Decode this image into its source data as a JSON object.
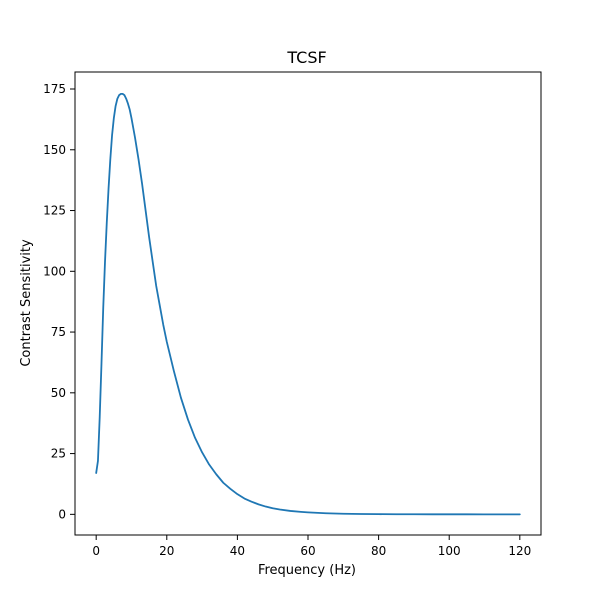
{
  "chart_data": {
    "type": "line",
    "title": "TCSF",
    "xlabel": "Frequency (Hz)",
    "ylabel": "Contrast Sensitivity",
    "xlim": [
      -6,
      126
    ],
    "ylim": [
      -8.5,
      182
    ],
    "x_ticks": [
      0,
      20,
      40,
      60,
      80,
      100,
      120
    ],
    "y_ticks": [
      0,
      25,
      50,
      75,
      100,
      125,
      150,
      175
    ],
    "x_tick_labels": [
      "0",
      "20",
      "40",
      "60",
      "80",
      "100",
      "120"
    ],
    "y_tick_labels": [
      "0",
      "25",
      "50",
      "75",
      "100",
      "125",
      "150",
      "175"
    ],
    "grid": false,
    "legend": "none",
    "series": [
      {
        "color": "#1f77b4",
        "x": [
          0,
          0.5,
          1,
          1.5,
          2,
          2.5,
          3,
          3.5,
          4,
          4.5,
          5,
          5.5,
          6,
          6.5,
          7,
          7.5,
          8,
          8.5,
          9,
          9.5,
          10,
          10.5,
          11,
          11.5,
          12,
          12.5,
          13,
          14,
          15,
          16,
          17,
          18,
          19,
          20,
          22,
          24,
          26,
          28,
          30,
          32,
          34,
          36,
          38,
          40,
          42,
          44,
          46,
          48,
          50,
          52,
          55,
          58,
          60,
          65,
          70,
          75,
          80,
          85,
          90,
          95,
          100,
          105,
          110,
          115,
          120
        ],
        "y": [
          17,
          22,
          40,
          62,
          85,
          104,
          120,
          134,
          146,
          156,
          163,
          168,
          171,
          172.5,
          173,
          173,
          172.5,
          171,
          169,
          166.5,
          163,
          159,
          155,
          150.5,
          146,
          141,
          136,
          125,
          114,
          104,
          94,
          86,
          78,
          71,
          59,
          48,
          39,
          31.5,
          25.5,
          20.5,
          16.5,
          13,
          10.5,
          8.3,
          6.5,
          5.2,
          4.1,
          3.2,
          2.5,
          2,
          1.4,
          1,
          0.8,
          0.45,
          0.25,
          0.15,
          0.08,
          0.05,
          0.03,
          0.02,
          0.01,
          0.01,
          0,
          0,
          0
        ]
      }
    ]
  }
}
